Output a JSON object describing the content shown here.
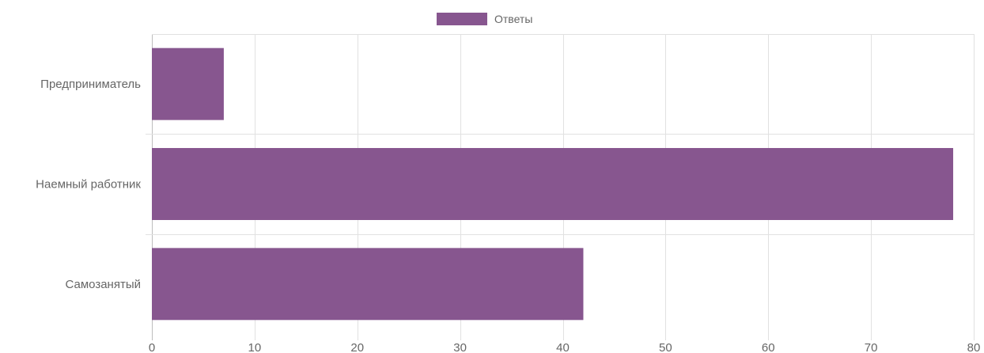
{
  "chart_data": {
    "type": "bar",
    "orientation": "horizontal",
    "categories": [
      "Предприниматель",
      "Наемный работник",
      "Самозанятый"
    ],
    "series": [
      {
        "name": "Ответы",
        "values": [
          7,
          78,
          42
        ]
      }
    ],
    "xlim": [
      0,
      80
    ],
    "x_ticks": [
      0,
      10,
      20,
      30,
      40,
      50,
      60,
      70,
      80
    ],
    "x_tick_labels": [
      "0",
      "10",
      "20",
      "30",
      "40",
      "50",
      "60",
      "70",
      "80"
    ],
    "grid": true,
    "legend_position": "top",
    "colors": {
      "bar": "#87568f",
      "grid": "#e1e1e1",
      "axis": "#bdbdbd",
      "text": "#666666"
    }
  }
}
